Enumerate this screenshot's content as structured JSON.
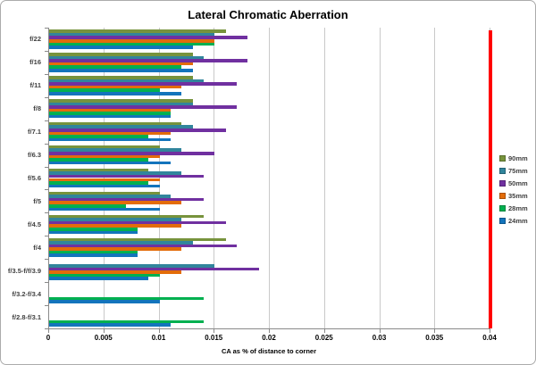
{
  "chart_data": {
    "type": "bar",
    "orientation": "horizontal",
    "title": "Lateral Chromatic Aberration",
    "xlabel": "CA as % of distance  to corner",
    "xlim": [
      0,
      0.04
    ],
    "x_ticks": [
      0,
      0.005,
      0.01,
      0.015,
      0.02,
      0.025,
      0.03,
      0.035,
      0.04
    ],
    "x_tick_labels": [
      "0",
      "0.005",
      "0.01",
      "0.015",
      "0.02",
      "0.025",
      "0.03",
      "0.035",
      "0.04"
    ],
    "grid": true,
    "legend_position": "right",
    "categories": [
      "f/22",
      "f/16",
      "f/11",
      "f/8",
      "f/7.1",
      "f/6.3",
      "f/5.6",
      "f/5",
      "f/4.5",
      "f/4",
      "f/3.5-f/f/3.9",
      "f/3.2-f/3.4",
      "f/2.8-f/3.1"
    ],
    "series": [
      {
        "name": "90mm",
        "color": "#77933C",
        "values": [
          0.016,
          0.013,
          0.013,
          0.013,
          0.012,
          0.01,
          0.009,
          0.01,
          0.014,
          0.016,
          null,
          null,
          null
        ]
      },
      {
        "name": "75mm",
        "color": "#31859C",
        "values": [
          0.015,
          0.014,
          0.014,
          0.013,
          0.013,
          0.012,
          0.012,
          0.011,
          0.012,
          0.013,
          0.015,
          null,
          null
        ]
      },
      {
        "name": "50mm",
        "color": "#7030A0",
        "values": [
          0.018,
          0.018,
          0.017,
          0.017,
          0.016,
          0.015,
          0.014,
          0.014,
          0.016,
          0.017,
          0.019,
          null,
          null
        ]
      },
      {
        "name": "35mm",
        "color": "#E36C0A",
        "values": [
          0.015,
          0.013,
          0.012,
          0.011,
          0.011,
          0.01,
          0.01,
          0.012,
          0.012,
          0.012,
          0.012,
          null,
          null
        ]
      },
      {
        "name": "28mm",
        "color": "#00B050",
        "values": [
          0.015,
          0.012,
          0.01,
          0.011,
          0.009,
          0.009,
          0.009,
          0.007,
          0.008,
          0.008,
          0.01,
          0.014,
          0.014
        ]
      },
      {
        "name": "24mm",
        "color": "#1374BC",
        "values": [
          0.013,
          0.013,
          0.012,
          0.011,
          0.011,
          0.011,
          0.01,
          0.01,
          0.008,
          0.008,
          0.009,
          0.01,
          0.011
        ]
      }
    ],
    "reference_line": {
      "value": 0.04,
      "color": "#FF0000"
    }
  }
}
